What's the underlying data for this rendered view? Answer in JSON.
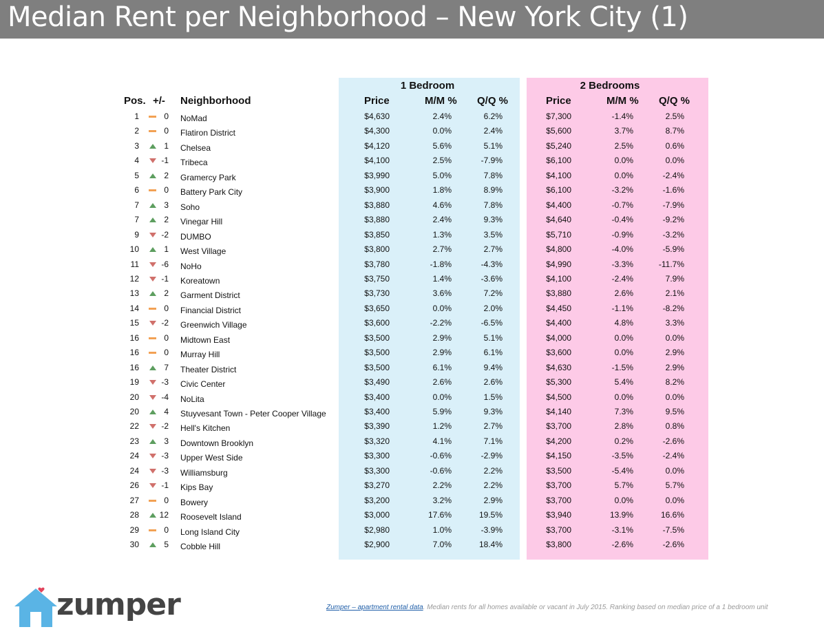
{
  "title": "Median Rent per Neighborhood – New York City (1)",
  "groups": {
    "one_bedroom": "1 Bedroom",
    "two_bedrooms": "2 Bedrooms"
  },
  "headers": {
    "pos": "Pos.",
    "change": "+/-",
    "neighborhood": "Neighborhood",
    "price": "Price",
    "mm": "M/M %",
    "qq": "Q/Q %"
  },
  "colors": {
    "one_bedroom_bg": "#daf0f9",
    "two_bedroom_bg": "#fdcae7",
    "up": "#5d9e5f",
    "down": "#d0706b",
    "flat": "#f2a154"
  },
  "rows": [
    {
      "pos": "1",
      "trend": "flat",
      "change": "0",
      "name": "NoMad",
      "p1": "$4,630",
      "m1": "2.4%",
      "q1": "6.2%",
      "p2": "$7,300",
      "m2": "-1.4%",
      "q2": "2.5%"
    },
    {
      "pos": "2",
      "trend": "flat",
      "change": "0",
      "name": "Flatiron District",
      "p1": "$4,300",
      "m1": "0.0%",
      "q1": "2.4%",
      "p2": "$5,600",
      "m2": "3.7%",
      "q2": "8.7%"
    },
    {
      "pos": "3",
      "trend": "up",
      "change": "1",
      "name": "Chelsea",
      "p1": "$4,120",
      "m1": "5.6%",
      "q1": "5.1%",
      "p2": "$5,240",
      "m2": "2.5%",
      "q2": "0.6%"
    },
    {
      "pos": "4",
      "trend": "down",
      "change": "-1",
      "name": "Tribeca",
      "p1": "$4,100",
      "m1": "2.5%",
      "q1": "-7.9%",
      "p2": "$6,100",
      "m2": "0.0%",
      "q2": "0.0%"
    },
    {
      "pos": "5",
      "trend": "up",
      "change": "2",
      "name": "Gramercy Park",
      "p1": "$3,990",
      "m1": "5.0%",
      "q1": "7.8%",
      "p2": "$4,100",
      "m2": "0.0%",
      "q2": "-2.4%"
    },
    {
      "pos": "6",
      "trend": "flat",
      "change": "0",
      "name": "Battery Park City",
      "p1": "$3,900",
      "m1": "1.8%",
      "q1": "8.9%",
      "p2": "$6,100",
      "m2": "-3.2%",
      "q2": "-1.6%"
    },
    {
      "pos": "7",
      "trend": "up",
      "change": "3",
      "name": "Soho",
      "p1": "$3,880",
      "m1": "4.6%",
      "q1": "7.8%",
      "p2": "$4,400",
      "m2": "-0.7%",
      "q2": "-7.9%"
    },
    {
      "pos": "7",
      "trend": "up",
      "change": "2",
      "name": "Vinegar Hill",
      "p1": "$3,880",
      "m1": "2.4%",
      "q1": "9.3%",
      "p2": "$4,640",
      "m2": "-0.4%",
      "q2": "-9.2%"
    },
    {
      "pos": "9",
      "trend": "down",
      "change": "-2",
      "name": "DUMBO",
      "p1": "$3,850",
      "m1": "1.3%",
      "q1": "3.5%",
      "p2": "$5,710",
      "m2": "-0.9%",
      "q2": "-3.2%"
    },
    {
      "pos": "10",
      "trend": "up",
      "change": "1",
      "name": "West Village",
      "p1": "$3,800",
      "m1": "2.7%",
      "q1": "2.7%",
      "p2": "$4,800",
      "m2": "-4.0%",
      "q2": "-5.9%"
    },
    {
      "pos": "11",
      "trend": "down",
      "change": "-6",
      "name": "NoHo",
      "p1": "$3,780",
      "m1": "-1.8%",
      "q1": "-4.3%",
      "p2": "$4,990",
      "m2": "-3.3%",
      "q2": "-11.7%"
    },
    {
      "pos": "12",
      "trend": "down",
      "change": "-1",
      "name": "Koreatown",
      "p1": "$3,750",
      "m1": "1.4%",
      "q1": "-3.6%",
      "p2": "$4,100",
      "m2": "-2.4%",
      "q2": "7.9%"
    },
    {
      "pos": "13",
      "trend": "up",
      "change": "2",
      "name": "Garment District",
      "p1": "$3,730",
      "m1": "3.6%",
      "q1": "7.2%",
      "p2": "$3,880",
      "m2": "2.6%",
      "q2": "2.1%"
    },
    {
      "pos": "14",
      "trend": "flat",
      "change": "0",
      "name": "Financial District",
      "p1": "$3,650",
      "m1": "0.0%",
      "q1": "2.0%",
      "p2": "$4,450",
      "m2": "-1.1%",
      "q2": "-8.2%"
    },
    {
      "pos": "15",
      "trend": "down",
      "change": "-2",
      "name": "Greenwich Village",
      "p1": "$3,600",
      "m1": "-2.2%",
      "q1": "-6.5%",
      "p2": "$4,400",
      "m2": "4.8%",
      "q2": "3.3%"
    },
    {
      "pos": "16",
      "trend": "flat",
      "change": "0",
      "name": "Midtown East",
      "p1": "$3,500",
      "m1": "2.9%",
      "q1": "5.1%",
      "p2": "$4,000",
      "m2": "0.0%",
      "q2": "0.0%"
    },
    {
      "pos": "16",
      "trend": "flat",
      "change": "0",
      "name": "Murray Hill",
      "p1": "$3,500",
      "m1": "2.9%",
      "q1": "6.1%",
      "p2": "$3,600",
      "m2": "0.0%",
      "q2": "2.9%"
    },
    {
      "pos": "16",
      "trend": "up",
      "change": "7",
      "name": "Theater District",
      "p1": "$3,500",
      "m1": "6.1%",
      "q1": "9.4%",
      "p2": "$4,630",
      "m2": "-1.5%",
      "q2": "2.9%"
    },
    {
      "pos": "19",
      "trend": "down",
      "change": "-3",
      "name": "Civic Center",
      "p1": "$3,490",
      "m1": "2.6%",
      "q1": "2.6%",
      "p2": "$5,300",
      "m2": "5.4%",
      "q2": "8.2%"
    },
    {
      "pos": "20",
      "trend": "down",
      "change": "-4",
      "name": "NoLita",
      "p1": "$3,400",
      "m1": "0.0%",
      "q1": "1.5%",
      "p2": "$4,500",
      "m2": "0.0%",
      "q2": "0.0%"
    },
    {
      "pos": "20",
      "trend": "up",
      "change": "4",
      "name": "Stuyvesant Town - Peter Cooper Village",
      "p1": "$3,400",
      "m1": "5.9%",
      "q1": "9.3%",
      "p2": "$4,140",
      "m2": "7.3%",
      "q2": "9.5%"
    },
    {
      "pos": "22",
      "trend": "down",
      "change": "-2",
      "name": "Hell's Kitchen",
      "p1": "$3,390",
      "m1": "1.2%",
      "q1": "2.7%",
      "p2": "$3,700",
      "m2": "2.8%",
      "q2": "0.8%"
    },
    {
      "pos": "23",
      "trend": "up",
      "change": "3",
      "name": "Downtown Brooklyn",
      "p1": "$3,320",
      "m1": "4.1%",
      "q1": "7.1%",
      "p2": "$4,200",
      "m2": "0.2%",
      "q2": "-2.6%"
    },
    {
      "pos": "24",
      "trend": "down",
      "change": "-3",
      "name": "Upper West Side",
      "p1": "$3,300",
      "m1": "-0.6%",
      "q1": "-2.9%",
      "p2": "$4,150",
      "m2": "-3.5%",
      "q2": "-2.4%"
    },
    {
      "pos": "24",
      "trend": "down",
      "change": "-3",
      "name": "Williamsburg",
      "p1": "$3,300",
      "m1": "-0.6%",
      "q1": "2.2%",
      "p2": "$3,500",
      "m2": "-5.4%",
      "q2": "0.0%"
    },
    {
      "pos": "26",
      "trend": "down",
      "change": "-1",
      "name": "Kips Bay",
      "p1": "$3,270",
      "m1": "2.2%",
      "q1": "2.2%",
      "p2": "$3,700",
      "m2": "5.7%",
      "q2": "5.7%"
    },
    {
      "pos": "27",
      "trend": "flat",
      "change": "0",
      "name": "Bowery",
      "p1": "$3,200",
      "m1": "3.2%",
      "q1": "2.9%",
      "p2": "$3,700",
      "m2": "0.0%",
      "q2": "0.0%"
    },
    {
      "pos": "28",
      "trend": "up",
      "change": "12",
      "name": "Roosevelt Island",
      "p1": "$3,000",
      "m1": "17.6%",
      "q1": "19.5%",
      "p2": "$3,940",
      "m2": "13.9%",
      "q2": "16.6%"
    },
    {
      "pos": "29",
      "trend": "flat",
      "change": "0",
      "name": "Long Island City",
      "p1": "$2,980",
      "m1": "1.0%",
      "q1": "-3.9%",
      "p2": "$3,700",
      "m2": "-3.1%",
      "q2": "-7.5%"
    },
    {
      "pos": "30",
      "trend": "up",
      "change": "5",
      "name": "Cobble Hill",
      "p1": "$2,900",
      "m1": "7.0%",
      "q1": "18.4%",
      "p2": "$3,800",
      "m2": "-2.6%",
      "q2": "-2.6%"
    }
  ],
  "logo": {
    "text": "zumper"
  },
  "footer": {
    "link": "Zumper – apartment rental data",
    "note": ". Median rents for all homes available or vacant in July 2015. Ranking based on median price of a 1 bedroom unit"
  }
}
